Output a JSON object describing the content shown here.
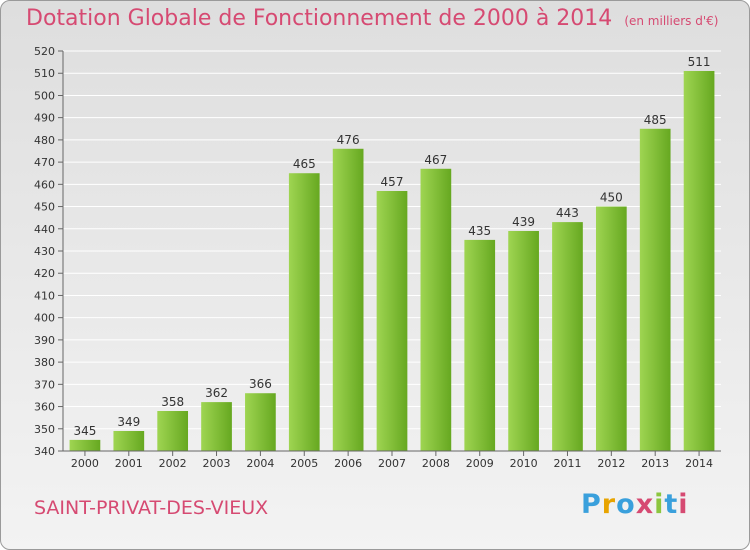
{
  "header": {
    "title": "Dotation Globale de Fonctionnement de 2000 à 2014",
    "unit": "(en milliers d'€)"
  },
  "footer": {
    "commune": "SAINT-PRIVAT-DES-VIEUX",
    "logo_letters": [
      "P",
      "r",
      "o",
      "x",
      "i",
      "t",
      "i"
    ],
    "logo_colors": [
      "#3aa0dc",
      "#e8a400",
      "#3aa0dc",
      "#d64a72",
      "#8cc63f",
      "#3aa0dc",
      "#d64a72"
    ]
  },
  "chart_data": {
    "type": "bar",
    "categories": [
      "2000",
      "2001",
      "2002",
      "2003",
      "2004",
      "2005",
      "2006",
      "2007",
      "2008",
      "2009",
      "2010",
      "2011",
      "2012",
      "2013",
      "2014"
    ],
    "values": [
      345,
      349,
      358,
      362,
      366,
      465,
      476,
      457,
      467,
      435,
      439,
      443,
      450,
      485,
      511
    ],
    "ylim": [
      340,
      520
    ],
    "yticks": [
      340,
      350,
      360,
      370,
      380,
      390,
      400,
      410,
      420,
      430,
      440,
      450,
      460,
      470,
      480,
      490,
      500,
      510,
      520
    ],
    "grid": true,
    "colors": {
      "bar_light": "#9fd552",
      "bar_dark": "#66a820",
      "grid": "#ffffff",
      "axis": "#666666"
    }
  }
}
